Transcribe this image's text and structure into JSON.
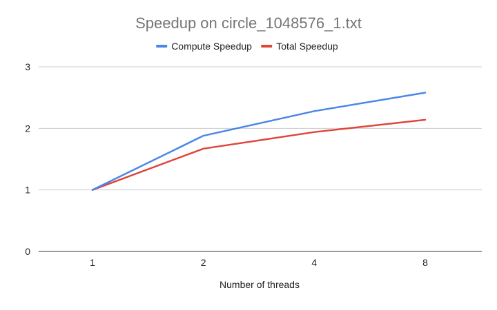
{
  "chart_data": {
    "type": "line",
    "title": "Speedup on circle_1048576_1.txt",
    "xlabel": "Number of threads",
    "ylabel": "",
    "categories": [
      "1",
      "2",
      "4",
      "8"
    ],
    "ylim": [
      0,
      3
    ],
    "yticks": [
      "0",
      "1",
      "2",
      "3"
    ],
    "grid": true,
    "legend_position": "top",
    "series": [
      {
        "name": "Compute Speedup",
        "color": "#4a86e8",
        "values": [
          1.0,
          1.88,
          2.28,
          2.58
        ]
      },
      {
        "name": "Total Speedup",
        "color": "#e0453a",
        "values": [
          1.0,
          1.67,
          1.94,
          2.14
        ]
      }
    ]
  }
}
